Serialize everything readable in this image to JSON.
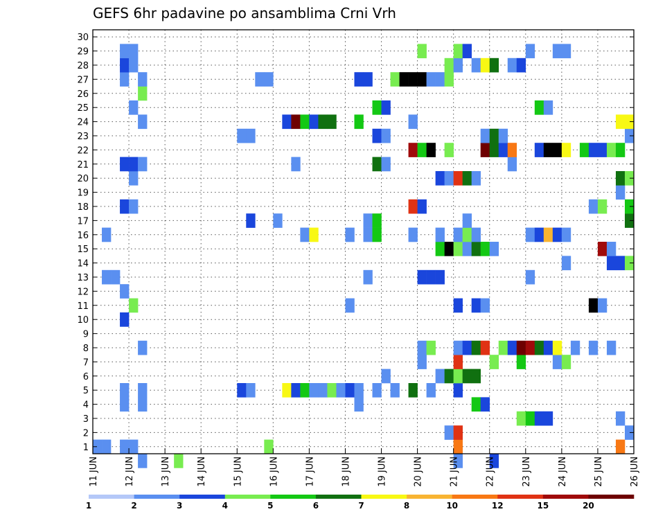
{
  "chart_data": {
    "type": "heatmap",
    "title": "GEFS 6hr padavine po ansamblima Crni Vrh",
    "xlabel": "",
    "ylabel": "",
    "x_ticks": [
      "11 JUN",
      "12 JUN",
      "13 JUN",
      "14 JUN",
      "15 JUN",
      "16 JUN",
      "17 JUN",
      "18 JUN",
      "19 JUN",
      "20 JUN",
      "21 JUN",
      "22 JUN",
      "23 JUN",
      "24 JUN",
      "25 JUN",
      "26 JUN"
    ],
    "y_ticks": [
      1,
      2,
      3,
      4,
      5,
      6,
      7,
      8,
      9,
      10,
      11,
      12,
      13,
      14,
      15,
      16,
      17,
      18,
      19,
      20,
      21,
      22,
      23,
      24,
      25,
      26,
      27,
      28,
      29,
      30
    ],
    "xlim": [
      0,
      60
    ],
    "ylim": [
      0.5,
      30.5
    ],
    "grid": true,
    "x_unit": "6-hour step from 11 JUN",
    "colorbar": {
      "labels": [
        "1",
        "2",
        "3",
        "4",
        "5",
        "6",
        "7",
        "8",
        "10",
        "12",
        "15",
        "20"
      ],
      "colors": [
        "#b4c8f8",
        "#5a8ff0",
        "#1a46dc",
        "#78ec50",
        "#14c814",
        "#107010",
        "#f8f814",
        "#f8b432",
        "#f87814",
        "#e03214",
        "#a00a0a",
        "#6e0000"
      ]
    },
    "cells": [
      [
        0,
        1,
        1
      ],
      [
        1,
        1,
        1
      ],
      [
        3,
        1,
        1
      ],
      [
        4,
        1,
        1
      ],
      [
        9,
        0,
        3
      ],
      [
        19,
        1,
        3
      ],
      [
        40,
        1,
        8
      ],
      [
        58,
        1,
        8
      ],
      [
        39,
        2,
        1
      ],
      [
        40,
        2,
        9
      ],
      [
        59,
        2,
        1
      ],
      [
        47,
        3,
        3
      ],
      [
        48,
        3,
        4
      ],
      [
        49,
        3,
        2
      ],
      [
        50,
        3,
        2
      ],
      [
        58,
        3,
        1
      ],
      [
        3,
        4,
        1
      ],
      [
        5,
        4,
        1
      ],
      [
        29,
        4,
        1
      ],
      [
        42,
        4,
        4
      ],
      [
        43,
        4,
        2
      ],
      [
        3,
        5,
        1
      ],
      [
        5,
        5,
        1
      ],
      [
        16,
        5,
        2
      ],
      [
        17,
        5,
        1
      ],
      [
        21,
        5,
        6
      ],
      [
        22,
        5,
        2
      ],
      [
        23,
        5,
        4
      ],
      [
        24,
        5,
        1
      ],
      [
        25,
        5,
        1
      ],
      [
        26,
        5,
        3
      ],
      [
        27,
        5,
        1
      ],
      [
        28,
        5,
        2
      ],
      [
        29,
        5,
        1
      ],
      [
        31,
        5,
        1
      ],
      [
        33,
        5,
        1
      ],
      [
        35,
        5,
        5
      ],
      [
        37,
        5,
        1
      ],
      [
        40,
        5,
        2
      ],
      [
        32,
        6,
        1
      ],
      [
        38,
        6,
        1
      ],
      [
        39,
        6,
        5
      ],
      [
        40,
        6,
        3
      ],
      [
        41,
        6,
        5
      ],
      [
        42,
        6,
        5
      ],
      [
        36,
        7,
        1
      ],
      [
        40,
        7,
        9
      ],
      [
        44,
        7,
        3
      ],
      [
        47,
        7,
        4
      ],
      [
        51,
        7,
        1
      ],
      [
        52,
        7,
        3
      ],
      [
        5,
        8,
        1
      ],
      [
        36,
        8,
        1
      ],
      [
        37,
        8,
        3
      ],
      [
        40,
        8,
        1
      ],
      [
        41,
        8,
        2
      ],
      [
        42,
        8,
        5
      ],
      [
        43,
        8,
        9
      ],
      [
        45,
        8,
        3
      ],
      [
        46,
        8,
        2
      ],
      [
        47,
        8,
        11
      ],
      [
        48,
        8,
        10
      ],
      [
        49,
        8,
        5
      ],
      [
        50,
        8,
        2
      ],
      [
        51,
        8,
        6
      ],
      [
        53,
        8,
        1
      ],
      [
        55,
        8,
        1
      ],
      [
        57,
        8,
        1
      ],
      [
        3,
        10,
        2
      ],
      [
        4,
        11,
        3
      ],
      [
        28,
        11,
        1
      ],
      [
        40,
        11,
        2
      ],
      [
        42,
        11,
        2
      ],
      [
        43,
        11,
        1
      ],
      [
        55,
        11,
        12
      ],
      [
        56,
        11,
        1
      ],
      [
        3,
        12,
        1
      ],
      [
        1,
        13,
        1
      ],
      [
        2,
        13,
        1
      ],
      [
        30,
        13,
        1
      ],
      [
        36,
        13,
        2
      ],
      [
        37,
        13,
        2
      ],
      [
        38,
        13,
        2
      ],
      [
        48,
        13,
        1
      ],
      [
        52,
        14,
        1
      ],
      [
        57,
        14,
        2
      ],
      [
        58,
        14,
        2
      ],
      [
        59,
        14,
        3
      ],
      [
        38,
        15,
        4
      ],
      [
        39,
        15,
        12
      ],
      [
        40,
        15,
        3
      ],
      [
        41,
        15,
        1
      ],
      [
        42,
        15,
        5
      ],
      [
        43,
        15,
        4
      ],
      [
        44,
        15,
        1
      ],
      [
        56,
        15,
        10
      ],
      [
        57,
        15,
        1
      ],
      [
        1,
        16,
        1
      ],
      [
        23,
        16,
        1
      ],
      [
        24,
        16,
        6
      ],
      [
        28,
        16,
        1
      ],
      [
        30,
        16,
        1
      ],
      [
        31,
        16,
        4
      ],
      [
        35,
        16,
        1
      ],
      [
        38,
        16,
        1
      ],
      [
        40,
        16,
        1
      ],
      [
        41,
        16,
        3
      ],
      [
        42,
        16,
        1
      ],
      [
        48,
        16,
        1
      ],
      [
        49,
        16,
        2
      ],
      [
        50,
        16,
        7
      ],
      [
        51,
        16,
        2
      ],
      [
        52,
        16,
        1
      ],
      [
        17,
        17,
        2
      ],
      [
        20,
        17,
        1
      ],
      [
        30,
        17,
        1
      ],
      [
        31,
        17,
        4
      ],
      [
        41,
        17,
        1
      ],
      [
        59,
        17,
        5
      ],
      [
        3,
        18,
        2
      ],
      [
        4,
        18,
        1
      ],
      [
        35,
        18,
        9
      ],
      [
        36,
        18,
        2
      ],
      [
        55,
        18,
        1
      ],
      [
        56,
        18,
        3
      ],
      [
        59,
        18,
        4
      ],
      [
        58,
        19,
        1
      ],
      [
        4,
        20,
        1
      ],
      [
        38,
        20,
        2
      ],
      [
        39,
        20,
        1
      ],
      [
        40,
        20,
        9
      ],
      [
        41,
        20,
        5
      ],
      [
        42,
        20,
        1
      ],
      [
        58,
        20,
        5
      ],
      [
        59,
        20,
        3
      ],
      [
        3,
        21,
        2
      ],
      [
        4,
        21,
        2
      ],
      [
        5,
        21,
        1
      ],
      [
        22,
        21,
        1
      ],
      [
        31,
        21,
        5
      ],
      [
        32,
        21,
        1
      ],
      [
        46,
        21,
        1
      ],
      [
        35,
        22,
        10
      ],
      [
        36,
        22,
        4
      ],
      [
        37,
        22,
        12
      ],
      [
        39,
        22,
        3
      ],
      [
        43,
        22,
        11
      ],
      [
        44,
        22,
        5
      ],
      [
        45,
        22,
        2
      ],
      [
        46,
        22,
        8
      ],
      [
        49,
        22,
        2
      ],
      [
        50,
        22,
        13
      ],
      [
        51,
        22,
        12
      ],
      [
        52,
        22,
        6
      ],
      [
        54,
        22,
        4
      ],
      [
        55,
        22,
        2
      ],
      [
        56,
        22,
        2
      ],
      [
        57,
        22,
        3
      ],
      [
        58,
        22,
        4
      ],
      [
        16,
        23,
        1
      ],
      [
        17,
        23,
        1
      ],
      [
        31,
        23,
        2
      ],
      [
        32,
        23,
        1
      ],
      [
        43,
        23,
        1
      ],
      [
        44,
        23,
        5
      ],
      [
        45,
        23,
        1
      ],
      [
        59,
        23,
        1
      ],
      [
        5,
        24,
        1
      ],
      [
        21,
        24,
        2
      ],
      [
        22,
        24,
        11
      ],
      [
        23,
        24,
        4
      ],
      [
        24,
        24,
        2
      ],
      [
        25,
        24,
        5
      ],
      [
        26,
        24,
        5
      ],
      [
        29,
        24,
        4
      ],
      [
        35,
        24,
        1
      ],
      [
        58,
        24,
        6
      ],
      [
        59,
        24,
        6
      ],
      [
        4,
        25,
        1
      ],
      [
        31,
        25,
        4
      ],
      [
        32,
        25,
        2
      ],
      [
        49,
        25,
        4
      ],
      [
        50,
        25,
        1
      ],
      [
        5,
        26,
        3
      ],
      [
        3,
        27,
        1
      ],
      [
        5,
        27,
        1
      ],
      [
        18,
        27,
        1
      ],
      [
        19,
        27,
        1
      ],
      [
        29,
        27,
        2
      ],
      [
        30,
        27,
        2
      ],
      [
        33,
        27,
        3
      ],
      [
        34,
        27,
        12
      ],
      [
        35,
        27,
        12
      ],
      [
        36,
        27,
        14
      ],
      [
        37,
        27,
        1
      ],
      [
        38,
        27,
        1
      ],
      [
        39,
        27,
        3
      ],
      [
        3,
        28,
        2
      ],
      [
        4,
        28,
        1
      ],
      [
        39,
        28,
        3
      ],
      [
        40,
        28,
        1
      ],
      [
        42,
        28,
        1
      ],
      [
        43,
        28,
        6
      ],
      [
        44,
        28,
        5
      ],
      [
        46,
        28,
        1
      ],
      [
        47,
        28,
        2
      ],
      [
        3,
        29,
        1
      ],
      [
        4,
        29,
        1
      ],
      [
        36,
        29,
        3
      ],
      [
        40,
        29,
        3
      ],
      [
        41,
        29,
        2
      ],
      [
        48,
        29,
        1
      ],
      [
        51,
        29,
        1
      ],
      [
        52,
        29,
        1
      ],
      [
        5,
        0,
        1
      ],
      [
        40,
        0,
        1
      ],
      [
        44,
        0,
        2
      ]
    ]
  }
}
